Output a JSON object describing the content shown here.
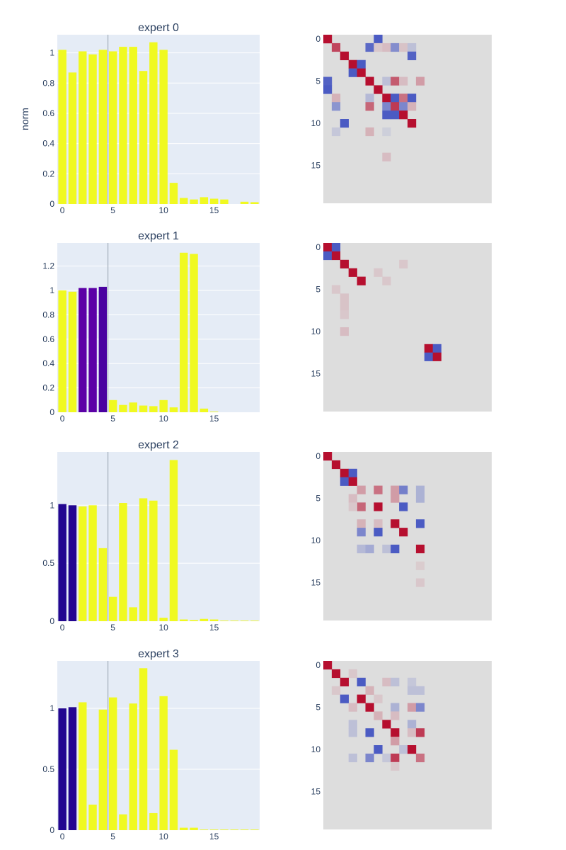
{
  "colors": {
    "plot_bg": "#e5ecf6",
    "grid": "#ffffff",
    "bar_high": "#f0f921",
    "bar_low_dark": "#0d0887",
    "bar_low_purple": "#5c01a6",
    "vline": "#b0b9c6",
    "heat_bg": "#dddddd",
    "text": "#2a3f5f"
  },
  "ylabel": "norm",
  "chart_data": [
    {
      "type": "bar",
      "title": "expert 0",
      "x": [
        0,
        1,
        2,
        3,
        4,
        5,
        6,
        7,
        8,
        9,
        10,
        11,
        12,
        13,
        14,
        15,
        16,
        17,
        18,
        19
      ],
      "values": [
        1.02,
        0.87,
        1.01,
        0.99,
        1.02,
        1.01,
        1.04,
        1.04,
        0.88,
        1.07,
        1.02,
        0.14,
        0.04,
        0.03,
        0.045,
        0.035,
        0.03,
        0.0,
        0.015,
        0.012
      ],
      "bar_colors": [
        "#f0f921",
        "#f0f921",
        "#f0f921",
        "#f0f921",
        "#f0f921",
        "#f0f921",
        "#f0f921",
        "#f0f921",
        "#f0f921",
        "#f0f921",
        "#f0f921",
        "#f0f921",
        "#f0f921",
        "#f0f921",
        "#f0f921",
        "#f0f921",
        "#f0f921",
        "#f0f921",
        "#f0f921",
        "#f0f921"
      ],
      "xlim": [
        -0.5,
        19.5
      ],
      "ylim": [
        0,
        1.12
      ],
      "yticks": [
        0,
        0.2,
        0.4,
        0.6,
        0.8,
        1
      ],
      "ytick_labels": [
        "0",
        "0.2",
        "0.4",
        "0.6",
        "0.8",
        "1"
      ],
      "xticks": [
        0,
        5,
        10,
        15
      ],
      "xtick_labels": [
        "0",
        "5",
        "10",
        "15"
      ],
      "vline_x": 4.5
    },
    {
      "type": "heatmap",
      "size": 20,
      "yticks": [
        0,
        5,
        10,
        15
      ],
      "ytick_labels": [
        "0",
        "5",
        "10",
        "15"
      ],
      "cells": [
        [
          0,
          0,
          0.95
        ],
        [
          0,
          6,
          -0.9
        ],
        [
          1,
          1,
          0.7
        ],
        [
          1,
          5,
          -0.8
        ],
        [
          1,
          6,
          0.1
        ],
        [
          1,
          7,
          0.15
        ],
        [
          1,
          8,
          -0.55
        ],
        [
          1,
          9,
          0.12
        ],
        [
          1,
          10,
          -0.2
        ],
        [
          2,
          2,
          0.95
        ],
        [
          2,
          10,
          -0.85
        ],
        [
          3,
          3,
          0.95
        ],
        [
          3,
          4,
          -0.9
        ],
        [
          4,
          3,
          -0.9
        ],
        [
          4,
          4,
          0.95
        ],
        [
          5,
          0,
          -0.85
        ],
        [
          5,
          5,
          0.95
        ],
        [
          5,
          7,
          -0.2
        ],
        [
          5,
          8,
          0.6
        ],
        [
          5,
          9,
          0.15
        ],
        [
          5,
          11,
          0.3
        ],
        [
          6,
          0,
          -0.9
        ],
        [
          6,
          6,
          0.95
        ],
        [
          7,
          1,
          0.2
        ],
        [
          7,
          5,
          -0.25
        ],
        [
          7,
          7,
          0.95
        ],
        [
          7,
          8,
          -0.9
        ],
        [
          7,
          9,
          0.5
        ],
        [
          7,
          10,
          -0.9
        ],
        [
          8,
          1,
          -0.5
        ],
        [
          8,
          5,
          0.55
        ],
        [
          8,
          7,
          -0.6
        ],
        [
          8,
          8,
          0.75
        ],
        [
          8,
          9,
          -0.6
        ],
        [
          8,
          10,
          0.2
        ],
        [
          9,
          7,
          -0.9
        ],
        [
          9,
          8,
          -0.9
        ],
        [
          9,
          9,
          0.95
        ],
        [
          10,
          2,
          -0.9
        ],
        [
          10,
          10,
          0.95
        ],
        [
          11,
          1,
          -0.15
        ],
        [
          11,
          5,
          0.2
        ],
        [
          11,
          7,
          -0.1
        ],
        [
          14,
          7,
          0.15
        ]
      ]
    },
    {
      "type": "bar",
      "title": "expert 1",
      "x": [
        0,
        1,
        2,
        3,
        4,
        5,
        6,
        7,
        8,
        9,
        10,
        11,
        12,
        13,
        14,
        15,
        16,
        17,
        18,
        19
      ],
      "values": [
        1.0,
        0.99,
        1.02,
        1.02,
        1.03,
        0.1,
        0.06,
        0.08,
        0.055,
        0.05,
        0.1,
        0.04,
        1.31,
        1.3,
        0.03,
        0.005,
        0.0,
        0.0,
        0.0,
        0.0
      ],
      "bar_colors": [
        "#f0f921",
        "#f0f921",
        "#5c01a6",
        "#5c01a6",
        "#4a02a0",
        "#f0f921",
        "#f0f921",
        "#f0f921",
        "#f0f921",
        "#f0f921",
        "#f0f921",
        "#f0f921",
        "#f0f921",
        "#f0f921",
        "#f0f921",
        "#f0f921",
        "#f0f921",
        "#f0f921",
        "#f0f921",
        "#f0f921"
      ],
      "xlim": [
        -0.5,
        19.5
      ],
      "ylim": [
        0,
        1.39
      ],
      "yticks": [
        0,
        0.2,
        0.4,
        0.6,
        0.8,
        1,
        1.2
      ],
      "ytick_labels": [
        "0",
        "0.2",
        "0.4",
        "0.6",
        "0.8",
        "1",
        "1.2"
      ],
      "xticks": [
        0,
        5,
        10,
        15
      ],
      "xtick_labels": [
        "0",
        "5",
        "10",
        "15"
      ],
      "vline_x": 4.5
    },
    {
      "type": "heatmap",
      "size": 20,
      "yticks": [
        0,
        5,
        10,
        15
      ],
      "ytick_labels": [
        "0",
        "5",
        "10",
        "15"
      ],
      "cells": [
        [
          0,
          0,
          0.95
        ],
        [
          0,
          1,
          -0.9
        ],
        [
          1,
          0,
          -0.9
        ],
        [
          1,
          1,
          0.95
        ],
        [
          2,
          2,
          0.95
        ],
        [
          3,
          3,
          0.95
        ],
        [
          4,
          4,
          0.95
        ],
        [
          2,
          9,
          0.1
        ],
        [
          3,
          6,
          0.1
        ],
        [
          4,
          7,
          0.1
        ],
        [
          5,
          1,
          0.1
        ],
        [
          6,
          2,
          0.12
        ],
        [
          7,
          2,
          0.12
        ],
        [
          8,
          2,
          0.1
        ],
        [
          10,
          2,
          0.15
        ],
        [
          12,
          12,
          0.95
        ],
        [
          12,
          13,
          -0.9
        ],
        [
          13,
          12,
          -0.9
        ],
        [
          13,
          13,
          0.95
        ]
      ]
    },
    {
      "type": "bar",
      "title": "expert 2",
      "x": [
        0,
        1,
        2,
        3,
        4,
        5,
        6,
        7,
        8,
        9,
        10,
        11,
        12,
        13,
        14,
        15,
        16,
        17,
        18,
        19
      ],
      "values": [
        1.01,
        1.0,
        0.99,
        1.0,
        0.63,
        0.21,
        1.02,
        0.12,
        1.06,
        1.04,
        0.03,
        1.39,
        0.015,
        0.01,
        0.02,
        0.015,
        0.005,
        0.005,
        0.005,
        0.005
      ],
      "bar_colors": [
        "#220690",
        "#220690",
        "#f0f921",
        "#f0f921",
        "#f0f921",
        "#f0f921",
        "#f0f921",
        "#f0f921",
        "#f0f921",
        "#f0f921",
        "#f0f921",
        "#f0f921",
        "#f0f921",
        "#f0f921",
        "#f0f921",
        "#f0f921",
        "#f0f921",
        "#f0f921",
        "#f0f921",
        "#f0f921"
      ],
      "xlim": [
        -0.5,
        19.5
      ],
      "ylim": [
        0,
        1.46
      ],
      "yticks": [
        0,
        0.5,
        1
      ],
      "ytick_labels": [
        "0",
        "0.5",
        "1"
      ],
      "xticks": [
        0,
        5,
        10,
        15
      ],
      "xtick_labels": [
        "0",
        "5",
        "10",
        "15"
      ],
      "vline_x": 4.5
    },
    {
      "type": "heatmap",
      "size": 20,
      "yticks": [
        0,
        5,
        10,
        15
      ],
      "ytick_labels": [
        "0",
        "5",
        "10",
        "15"
      ],
      "cells": [
        [
          0,
          0,
          0.95
        ],
        [
          1,
          1,
          0.95
        ],
        [
          2,
          2,
          0.95
        ],
        [
          2,
          3,
          -0.9
        ],
        [
          3,
          2,
          -0.9
        ],
        [
          3,
          3,
          0.95
        ],
        [
          4,
          4,
          0.3
        ],
        [
          4,
          6,
          0.5
        ],
        [
          4,
          8,
          0.3
        ],
        [
          4,
          9,
          -0.65
        ],
        [
          4,
          11,
          -0.3
        ],
        [
          5,
          3,
          0.15
        ],
        [
          5,
          8,
          0.3
        ],
        [
          5,
          11,
          -0.3
        ],
        [
          6,
          4,
          0.55
        ],
        [
          6,
          6,
          0.95
        ],
        [
          6,
          9,
          -0.9
        ],
        [
          6,
          3,
          0.1
        ],
        [
          8,
          4,
          0.2
        ],
        [
          8,
          6,
          0.15
        ],
        [
          8,
          11,
          -0.9
        ],
        [
          9,
          4,
          -0.6
        ],
        [
          9,
          6,
          -0.9
        ],
        [
          9,
          9,
          0.95
        ],
        [
          8,
          8,
          0.95
        ],
        [
          11,
          4,
          -0.25
        ],
        [
          11,
          5,
          -0.35
        ],
        [
          11,
          7,
          -0.2
        ],
        [
          11,
          8,
          -0.9
        ],
        [
          11,
          11,
          0.95
        ],
        [
          13,
          11,
          0.08
        ],
        [
          15,
          11,
          0.1
        ]
      ]
    },
    {
      "type": "bar",
      "title": "expert 3",
      "x": [
        0,
        1,
        2,
        3,
        4,
        5,
        6,
        7,
        8,
        9,
        10,
        11,
        12,
        13,
        14,
        15,
        16,
        17,
        18,
        19
      ],
      "values": [
        1.0,
        1.01,
        1.05,
        0.21,
        0.99,
        1.09,
        0.13,
        1.04,
        1.33,
        0.14,
        1.1,
        0.66,
        0.02,
        0.02,
        0.005,
        0.005,
        0.005,
        0.005,
        0.005,
        0.005
      ],
      "bar_colors": [
        "#220690",
        "#220690",
        "#f0f921",
        "#f0f921",
        "#f0f921",
        "#f0f921",
        "#f0f921",
        "#f0f921",
        "#f0f921",
        "#f0f921",
        "#f0f921",
        "#f0f921",
        "#f0f921",
        "#f0f921",
        "#f0f921",
        "#f0f921",
        "#f0f921",
        "#f0f921",
        "#f0f921",
        "#f0f921"
      ],
      "xlim": [
        -0.5,
        19.5
      ],
      "ylim": [
        0,
        1.39
      ],
      "yticks": [
        0,
        0.5,
        1
      ],
      "ytick_labels": [
        "0",
        "0.5",
        "1"
      ],
      "xticks": [
        0,
        5,
        10,
        15
      ],
      "xtick_labels": [
        "0",
        "5",
        "10",
        "15"
      ],
      "vline_x": 4.5
    },
    {
      "type": "heatmap",
      "size": 20,
      "yticks": [
        0,
        5,
        10,
        15
      ],
      "ytick_labels": [
        "0",
        "5",
        "10",
        "15"
      ],
      "cells": [
        [
          0,
          0,
          0.95
        ],
        [
          1,
          1,
          0.95
        ],
        [
          1,
          3,
          0.1
        ],
        [
          2,
          2,
          0.95
        ],
        [
          2,
          4,
          -0.9
        ],
        [
          2,
          7,
          0.15
        ],
        [
          2,
          8,
          -0.2
        ],
        [
          2,
          10,
          -0.15
        ],
        [
          3,
          1,
          0.1
        ],
        [
          3,
          5,
          0.2
        ],
        [
          3,
          10,
          -0.2
        ],
        [
          3,
          11,
          -0.2
        ],
        [
          4,
          2,
          -0.9
        ],
        [
          4,
          4,
          0.95
        ],
        [
          4,
          6,
          0.1
        ],
        [
          5,
          5,
          0.95
        ],
        [
          5,
          8,
          -0.3
        ],
        [
          5,
          10,
          0.3
        ],
        [
          5,
          11,
          -0.6
        ],
        [
          5,
          3,
          0.15
        ],
        [
          6,
          6,
          0.2
        ],
        [
          6,
          8,
          0.15
        ],
        [
          7,
          7,
          0.95
        ],
        [
          7,
          10,
          -0.3
        ],
        [
          8,
          5,
          -0.9
        ],
        [
          8,
          8,
          0.95
        ],
        [
          8,
          10,
          0.15
        ],
        [
          8,
          11,
          0.75
        ],
        [
          7,
          3,
          -0.2
        ],
        [
          8,
          3,
          -0.2
        ],
        [
          9,
          8,
          0.3
        ],
        [
          10,
          6,
          -0.9
        ],
        [
          10,
          9,
          -0.2
        ],
        [
          10,
          10,
          0.95
        ],
        [
          11,
          3,
          -0.2
        ],
        [
          11,
          5,
          -0.6
        ],
        [
          11,
          7,
          -0.15
        ],
        [
          11,
          8,
          0.75
        ],
        [
          11,
          11,
          0.5
        ],
        [
          12,
          8,
          0.1
        ]
      ]
    }
  ]
}
